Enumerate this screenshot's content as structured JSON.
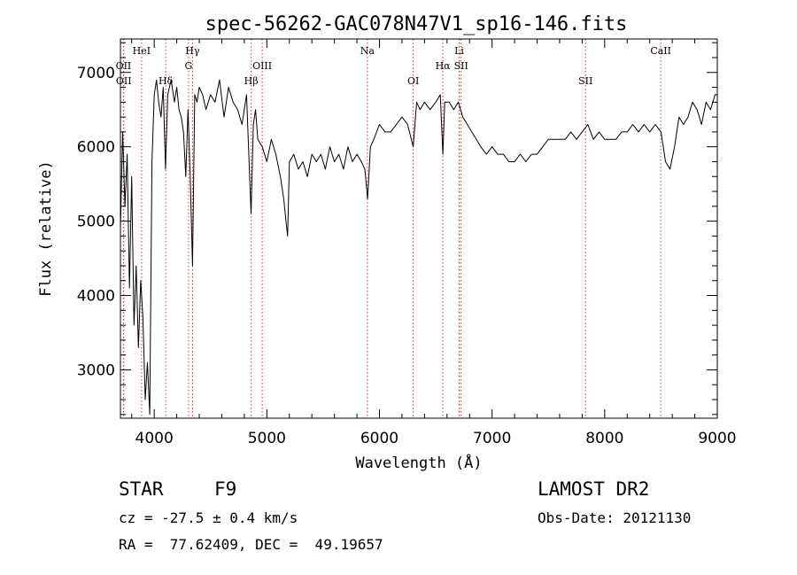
{
  "chart_data": {
    "type": "line",
    "title": "spec-56262-GAC078N47V1_sp16-146.fits",
    "xlabel": "Wavelength (Å)",
    "ylabel": "Flux (relative)",
    "xlim": [
      3700,
      9000
    ],
    "ylim": [
      2350,
      7450
    ],
    "xticks": [
      4000,
      5000,
      6000,
      7000,
      8000,
      9000
    ],
    "yticks": [
      3000,
      4000,
      5000,
      6000,
      7000
    ],
    "grid": false,
    "series": [
      {
        "x": [
          3700,
          3720,
          3740,
          3760,
          3780,
          3800,
          3820,
          3840,
          3860,
          3880,
          3900,
          3920,
          3940,
          3960,
          3980,
          4000,
          4020,
          4040,
          4060,
          4080,
          4100,
          4120,
          4150,
          4180,
          4200,
          4220,
          4240,
          4260,
          4280,
          4300,
          4320,
          4340,
          4360,
          4380,
          4400,
          4430,
          4460,
          4500,
          4540,
          4580,
          4620,
          4660,
          4700,
          4740,
          4780,
          4820,
          4860,
          4880,
          4900,
          4920,
          4960,
          5000,
          5040,
          5080,
          5120,
          5150,
          5170,
          5185,
          5200,
          5240,
          5280,
          5320,
          5360,
          5400,
          5440,
          5480,
          5520,
          5560,
          5600,
          5640,
          5680,
          5720,
          5760,
          5800,
          5840,
          5870,
          5895,
          5920,
          5950,
          6000,
          6050,
          6100,
          6150,
          6200,
          6250,
          6300,
          6330,
          6360,
          6400,
          6450,
          6500,
          6540,
          6563,
          6580,
          6620,
          6660,
          6700,
          6740,
          6780,
          6820,
          6860,
          6900,
          6950,
          7000,
          7050,
          7100,
          7150,
          7200,
          7250,
          7300,
          7350,
          7400,
          7450,
          7500,
          7550,
          7600,
          7650,
          7700,
          7750,
          7800,
          7850,
          7900,
          7950,
          8000,
          8050,
          8100,
          8150,
          8200,
          8250,
          8300,
          8350,
          8400,
          8450,
          8500,
          8520,
          8540,
          8580,
          8620,
          8660,
          8700,
          8740,
          8780,
          8820,
          8860,
          8900,
          8940,
          8980,
          9000
        ],
        "values": [
          4900,
          6200,
          5200,
          5900,
          4100,
          5600,
          3600,
          4400,
          3300,
          4200,
          3700,
          2600,
          3100,
          2400,
          5800,
          6700,
          6900,
          6600,
          6400,
          6800,
          5700,
          6700,
          6900,
          6600,
          6800,
          6500,
          6400,
          6200,
          5600,
          6500,
          5600,
          4400,
          6700,
          6600,
          6800,
          6700,
          6500,
          6700,
          6600,
          6900,
          6400,
          6800,
          6600,
          6500,
          6300,
          6700,
          5100,
          6300,
          6500,
          6100,
          6000,
          5800,
          6100,
          5900,
          5600,
          5300,
          5000,
          4800,
          5800,
          5900,
          5700,
          5800,
          5600,
          5900,
          5800,
          5900,
          5700,
          6000,
          5800,
          5900,
          5700,
          6000,
          5800,
          5900,
          5800,
          5700,
          5300,
          6000,
          6100,
          6300,
          6200,
          6200,
          6300,
          6400,
          6300,
          6000,
          6600,
          6500,
          6600,
          6500,
          6600,
          6700,
          5900,
          6600,
          6600,
          6500,
          6600,
          6400,
          6300,
          6200,
          6100,
          6000,
          5900,
          6000,
          5900,
          5900,
          5800,
          5800,
          5900,
          5800,
          5900,
          5900,
          6000,
          6100,
          6100,
          6100,
          6100,
          6200,
          6100,
          6200,
          6300,
          6100,
          6200,
          6100,
          6100,
          6100,
          6200,
          6200,
          6300,
          6200,
          6300,
          6200,
          6300,
          6200,
          6000,
          5800,
          5700,
          6000,
          6400,
          6300,
          6400,
          6600,
          6500,
          6300,
          6600,
          6500,
          6700,
          6700
        ]
      }
    ],
    "lines": [
      {
        "label": "OII",
        "x": 3727,
        "row": 2
      },
      {
        "label": "OII",
        "x": 3729,
        "row": 3
      },
      {
        "label": "HeI",
        "x": 3888,
        "row": 1
      },
      {
        "label": "Hδ",
        "x": 4102,
        "row": 3
      },
      {
        "label": "G",
        "x": 4305,
        "row": 2
      },
      {
        "label": "Hγ",
        "x": 4340,
        "row": 1
      },
      {
        "label": "Hβ",
        "x": 4861,
        "row": 3
      },
      {
        "label": "OIII",
        "x": 4959,
        "row": 2
      },
      {
        "label": "Na",
        "x": 5893,
        "row": 1
      },
      {
        "label": "OI",
        "x": 6300,
        "row": 3
      },
      {
        "label": "Hα",
        "x": 6563,
        "row": 2
      },
      {
        "label": "Li",
        "x": 6708,
        "row": 1
      },
      {
        "label": "SII",
        "x": 6725,
        "row": 2
      },
      {
        "label": "SII",
        "x": 7830,
        "row": 3
      },
      {
        "label": "CaII",
        "x": 8498,
        "row": 1
      }
    ]
  },
  "info": {
    "class": "STAR",
    "subclass": "F9",
    "survey": "LAMOST DR2",
    "cz": "cz = -27.5 ± 0.4 km/s",
    "obs_date": "Obs-Date: 20121130",
    "coords": "RA =  77.62409, DEC =  49.19657"
  },
  "colors": {
    "spectrum": "#000000",
    "line_marker": "#cc3333",
    "axis": "#000000"
  }
}
